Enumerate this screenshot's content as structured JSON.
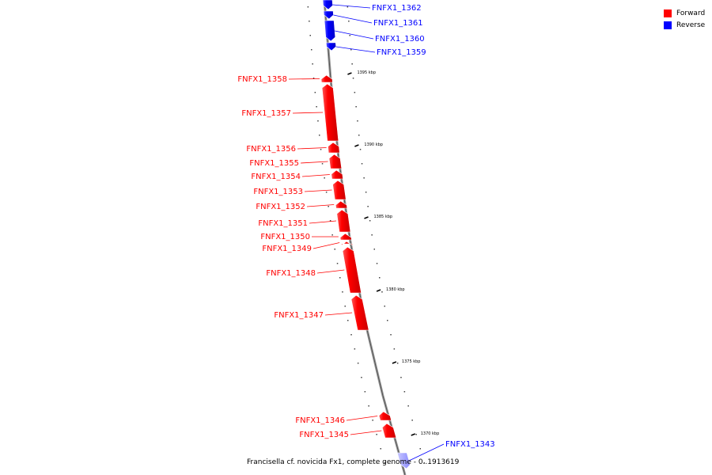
{
  "legend": {
    "items": [
      {
        "label": "Forward",
        "color": "#ff0000"
      },
      {
        "label": "Reverse",
        "color": "#0000ff"
      }
    ]
  },
  "caption": "Francisella cf. novicida Fx1, complete genome - 0..1913619",
  "ticks": [
    {
      "label": "1395 kbp"
    },
    {
      "label": "1390 kbp"
    },
    {
      "label": "1385 kbp"
    },
    {
      "label": "1380 kbp"
    },
    {
      "label": "1375 kbp"
    },
    {
      "label": "1370 kbp"
    }
  ],
  "genes": [
    {
      "name": "FNFX1_1362",
      "strand": "reverse"
    },
    {
      "name": "FNFX1_1361",
      "strand": "reverse"
    },
    {
      "name": "FNFX1_1360",
      "strand": "reverse"
    },
    {
      "name": "FNFX1_1359",
      "strand": "reverse"
    },
    {
      "name": "FNFX1_1358",
      "strand": "forward"
    },
    {
      "name": "FNFX1_1357",
      "strand": "forward"
    },
    {
      "name": "FNFX1_1356",
      "strand": "forward"
    },
    {
      "name": "FNFX1_1355",
      "strand": "forward"
    },
    {
      "name": "FNFX1_1354",
      "strand": "forward"
    },
    {
      "name": "FNFX1_1353",
      "strand": "forward"
    },
    {
      "name": "FNFX1_1352",
      "strand": "forward"
    },
    {
      "name": "FNFX1_1351",
      "strand": "forward"
    },
    {
      "name": "FNFX1_1350",
      "strand": "forward"
    },
    {
      "name": "FNFX1_1349",
      "strand": "forward"
    },
    {
      "name": "FNFX1_1348",
      "strand": "forward"
    },
    {
      "name": "FNFX1_1347",
      "strand": "forward"
    },
    {
      "name": "FNFX1_1346",
      "strand": "forward"
    },
    {
      "name": "FNFX1_1345",
      "strand": "forward"
    },
    {
      "name": "FNFX1_1343",
      "strand": "reverse"
    }
  ]
}
